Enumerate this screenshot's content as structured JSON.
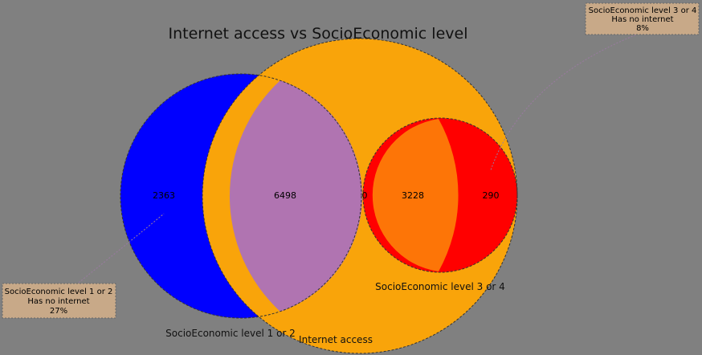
{
  "title": "Internet access vs SocioEconomic level",
  "colors": {
    "background": "#808080",
    "ses12": "#0000ff",
    "internet": "#f9a40a",
    "ses34": "#ff0000",
    "overlap_ses12_internet": "#b074b1",
    "overlap_ses34_internet": "#fd7507",
    "annotation_box": "#c8a988"
  },
  "sets": {
    "ses12": "SocioEconomic level 1 or 2",
    "internet": "Internet access",
    "ses34": "SocioEconomic level 3 or 4"
  },
  "region_counts": {
    "ses12_only": "2363",
    "ses12_and_internet": "6498",
    "ses12_and_ses34": "0",
    "internet_and_ses34": "3228",
    "ses34_only": "290"
  },
  "annotations": {
    "left": {
      "line1": "SocioEconomic level 1 or 2",
      "line2": "Has no internet",
      "line3": "27%"
    },
    "right": {
      "line1": "SocioEconomic level 3 or 4",
      "line2": "Has no internet",
      "line3": "8%"
    }
  }
}
